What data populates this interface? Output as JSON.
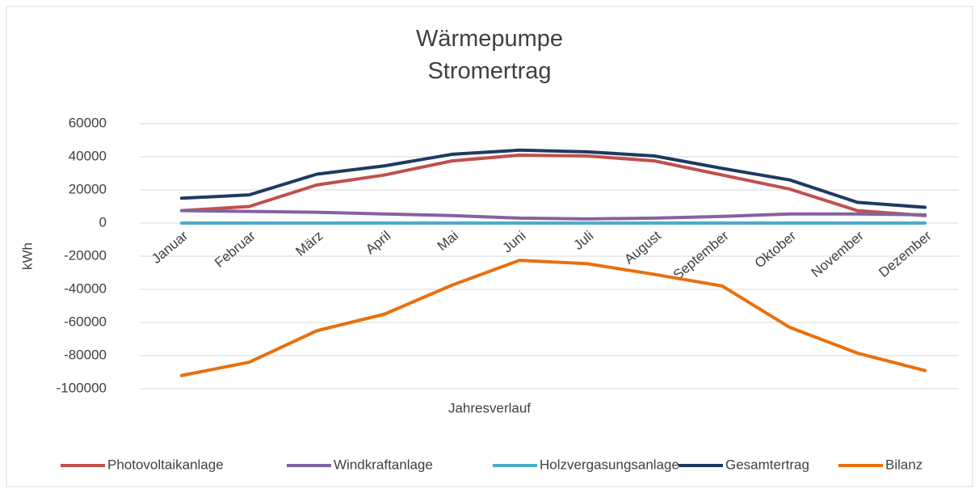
{
  "chart_data": {
    "type": "line",
    "title": "Wärmepumpe\nStromertrag",
    "x_label": "Jahresverlauf",
    "y_label": "kWh",
    "categories": [
      "Januar",
      "Februar",
      "März",
      "April",
      "Mai",
      "Juni",
      "Juli",
      "August",
      "September",
      "Oktober",
      "November",
      "Dezember"
    ],
    "series": [
      {
        "name": "Photovoltaikanlage",
        "color": "#c0504d",
        "values": [
          7500,
          10000,
          23000,
          29000,
          37500,
          41000,
          40500,
          37500,
          29000,
          20500,
          7500,
          4500
        ]
      },
      {
        "name": "Windkraftanlage",
        "color": "#8064a2",
        "values": [
          7500,
          7000,
          6500,
          5500,
          4500,
          3000,
          2500,
          3000,
          4000,
          5500,
          5500,
          5000
        ]
      },
      {
        "name": "Holzvergasungsanlage",
        "color": "#4bacc6",
        "values": [
          0,
          0,
          0,
          0,
          0,
          0,
          0,
          0,
          0,
          0,
          0,
          0
        ]
      },
      {
        "name": "Gesamtertrag",
        "color": "#1f3a60",
        "values": [
          15000,
          17000,
          29500,
          34500,
          41500,
          44000,
          43000,
          40500,
          33000,
          26000,
          12500,
          9500
        ]
      },
      {
        "name": "Bilanz",
        "color": "#e8700e",
        "values": [
          -92000,
          -84000,
          -65000,
          -55000,
          -37500,
          -22500,
          -24500,
          -31000,
          -38000,
          -63000,
          -78500,
          -89000
        ]
      }
    ],
    "ylim": [
      -100000,
      60000
    ],
    "yticks": [
      -100000,
      -80000,
      -60000,
      -40000,
      -20000,
      0,
      20000,
      40000,
      60000
    ],
    "grid": true,
    "legend": "bottom"
  }
}
